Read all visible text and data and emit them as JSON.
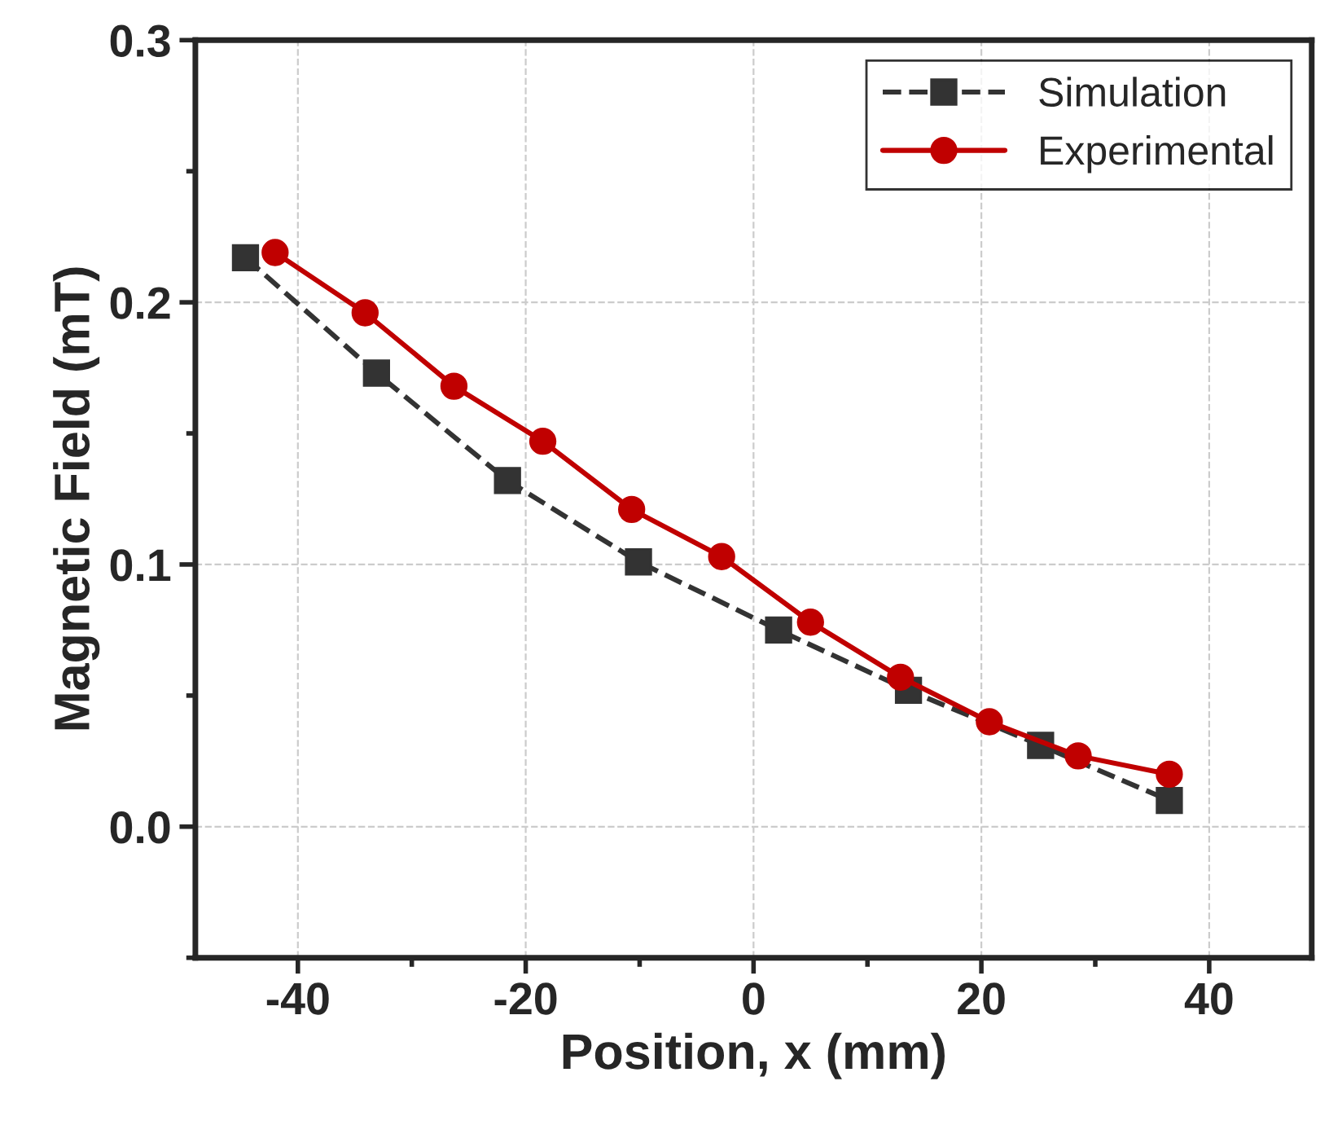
{
  "chart_data": {
    "type": "line",
    "xlabel": "Position, x (mm)",
    "ylabel": "Magnetic Field (mT)",
    "series": [
      {
        "name": "Simulation",
        "color": "#333333",
        "marker": "square",
        "line_style": "dashed",
        "x": [
          -44.6,
          -33.1,
          -21.6,
          -10.1,
          2.2,
          13.6,
          25.2,
          36.5
        ],
        "values": [
          0.217,
          0.173,
          0.132,
          0.101,
          0.075,
          0.052,
          0.031,
          0.01
        ]
      },
      {
        "name": "Experimental",
        "color": "#c00000",
        "marker": "circle",
        "line_style": "solid",
        "x": [
          -42.0,
          -34.1,
          -26.3,
          -18.5,
          -10.7,
          -2.8,
          5.0,
          12.9,
          20.7,
          28.5,
          36.5
        ],
        "values": [
          0.219,
          0.196,
          0.168,
          0.147,
          0.121,
          0.103,
          0.078,
          0.057,
          0.04,
          0.027,
          0.02
        ]
      }
    ],
    "xlim": [
      -49,
      49
    ],
    "xticks": [
      -40,
      -20,
      0,
      20,
      40
    ],
    "ylim": [
      -0.05,
      0.3
    ],
    "yticks": [
      {
        "value": 0,
        "label": "0.0"
      },
      0.1,
      0.2,
      0.3
    ],
    "grid": true,
    "legend": "top right"
  }
}
